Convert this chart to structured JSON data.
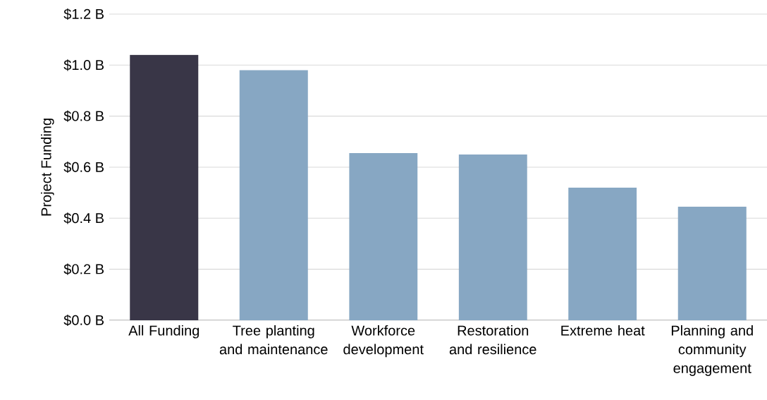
{
  "chart_data": {
    "type": "bar",
    "ylabel": "Project Funding",
    "categories": [
      "All Funding",
      "Tree planting and maintenance",
      "Workforce development",
      "Restoration and resilience",
      "Extreme heat",
      "Planning and community engagement"
    ],
    "values": [
      1.04,
      0.98,
      0.655,
      0.65,
      0.52,
      0.445
    ],
    "colors": [
      "#393647",
      "#87a7c3",
      "#87a7c3",
      "#87a7c3",
      "#87a7c3",
      "#87a7c3"
    ],
    "ylim": [
      0,
      1.2
    ],
    "yticks": [
      {
        "value": 0,
        "label": "$0.0 B"
      },
      {
        "value": 0.2,
        "label": "$0.2 B"
      },
      {
        "value": 0.4,
        "label": "$0.4 B"
      },
      {
        "value": 0.6,
        "label": "$0.6 B"
      },
      {
        "value": 0.8,
        "label": "$0.8 B"
      },
      {
        "value": 1.0,
        "label": "$1.0 B"
      },
      {
        "value": 1.2,
        "label": "$1.2 B"
      }
    ],
    "grid": "y"
  }
}
